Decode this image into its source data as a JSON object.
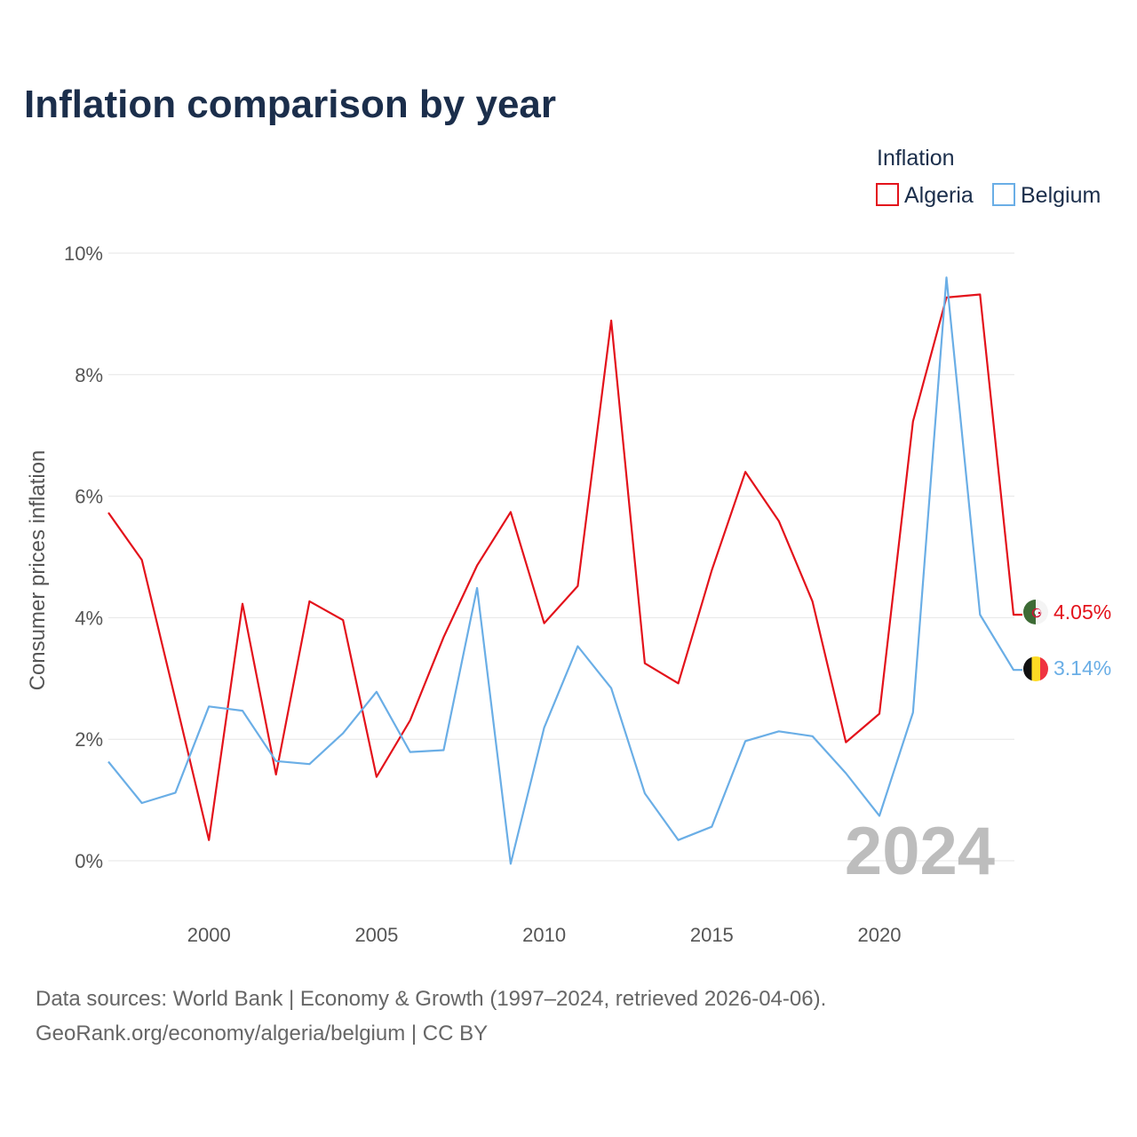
{
  "chart_data": {
    "type": "line",
    "title": "Inflation comparison by year",
    "ylabel": "Consumer prices inflation",
    "xlabel": "",
    "ylim": [
      -1,
      10
    ],
    "xlim": [
      1997,
      2024
    ],
    "yticks": [
      0,
      2,
      4,
      6,
      8,
      10
    ],
    "ytick_labels": [
      "0%",
      "2%",
      "4%",
      "6%",
      "8%",
      "10%"
    ],
    "xticks": [
      2000,
      2005,
      2010,
      2015,
      2020
    ],
    "xtick_labels": [
      "2000",
      "2005",
      "2010",
      "2015",
      "2020"
    ],
    "legend_title": "Inflation",
    "legend_position": "top-right",
    "watermark_year": "2024",
    "x": [
      1997,
      1998,
      1999,
      2000,
      2001,
      2002,
      2003,
      2004,
      2005,
      2006,
      2007,
      2008,
      2009,
      2010,
      2011,
      2012,
      2013,
      2014,
      2015,
      2016,
      2017,
      2018,
      2019,
      2020,
      2021,
      2022,
      2023,
      2024
    ],
    "series": [
      {
        "name": "Algeria",
        "color": "#e3121b",
        "end_label": "4.05%",
        "flag": "algeria-flag",
        "values": [
          5.73,
          4.95,
          2.65,
          0.34,
          4.23,
          1.42,
          4.27,
          3.96,
          1.38,
          2.31,
          3.68,
          4.86,
          5.74,
          3.91,
          4.52,
          8.89,
          3.25,
          2.92,
          4.78,
          6.4,
          5.59,
          4.27,
          1.95,
          2.42,
          7.23,
          9.27,
          9.32,
          4.05
        ]
      },
      {
        "name": "Belgium",
        "color": "#6aaee6",
        "end_label": "3.14%",
        "flag": "belgium-flag",
        "values": [
          1.63,
          0.95,
          1.12,
          2.54,
          2.47,
          1.64,
          1.59,
          2.1,
          2.78,
          1.79,
          1.82,
          4.49,
          -0.05,
          2.19,
          3.53,
          2.84,
          1.11,
          0.34,
          0.56,
          1.97,
          2.13,
          2.05,
          1.44,
          0.74,
          2.44,
          9.6,
          4.05,
          3.14
        ]
      }
    ]
  },
  "footer": {
    "line1": "Data sources: World Bank | Economy & Growth (1997–2024, retrieved 2026-04-06).",
    "line2": "GeoRank.org/economy/algeria/belgium | CC BY"
  }
}
